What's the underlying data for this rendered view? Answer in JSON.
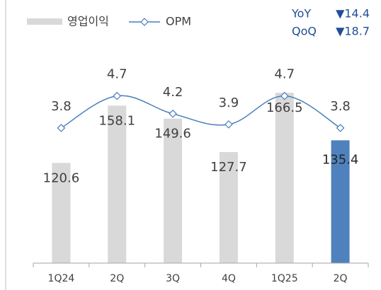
{
  "chart_data": {
    "type": "bar_line",
    "categories": [
      "1Q24",
      "2Q",
      "3Q",
      "4Q",
      "1Q25",
      "2Q"
    ],
    "series": [
      {
        "name": "영업이익",
        "type": "bar",
        "color": "#d9d9d9",
        "colors": [
          "#d9d9d9",
          "#d9d9d9",
          "#d9d9d9",
          "#d9d9d9",
          "#d9d9d9",
          "#4f81bd"
        ],
        "values": [
          120.6,
          158.1,
          149.6,
          127.7,
          166.5,
          135.4
        ]
      },
      {
        "name": "OPM",
        "type": "line",
        "axis": "y2",
        "color": "#4a7ebb",
        "values": [
          3.8,
          4.7,
          4.2,
          3.9,
          4.7,
          3.8
        ]
      }
    ],
    "ylim": [
      55,
      218
    ],
    "y2lim": [
      0,
      7
    ],
    "annotations": [
      [
        "YoY",
        "▼14.4"
      ],
      [
        "QoQ",
        "▼18.7"
      ]
    ]
  }
}
